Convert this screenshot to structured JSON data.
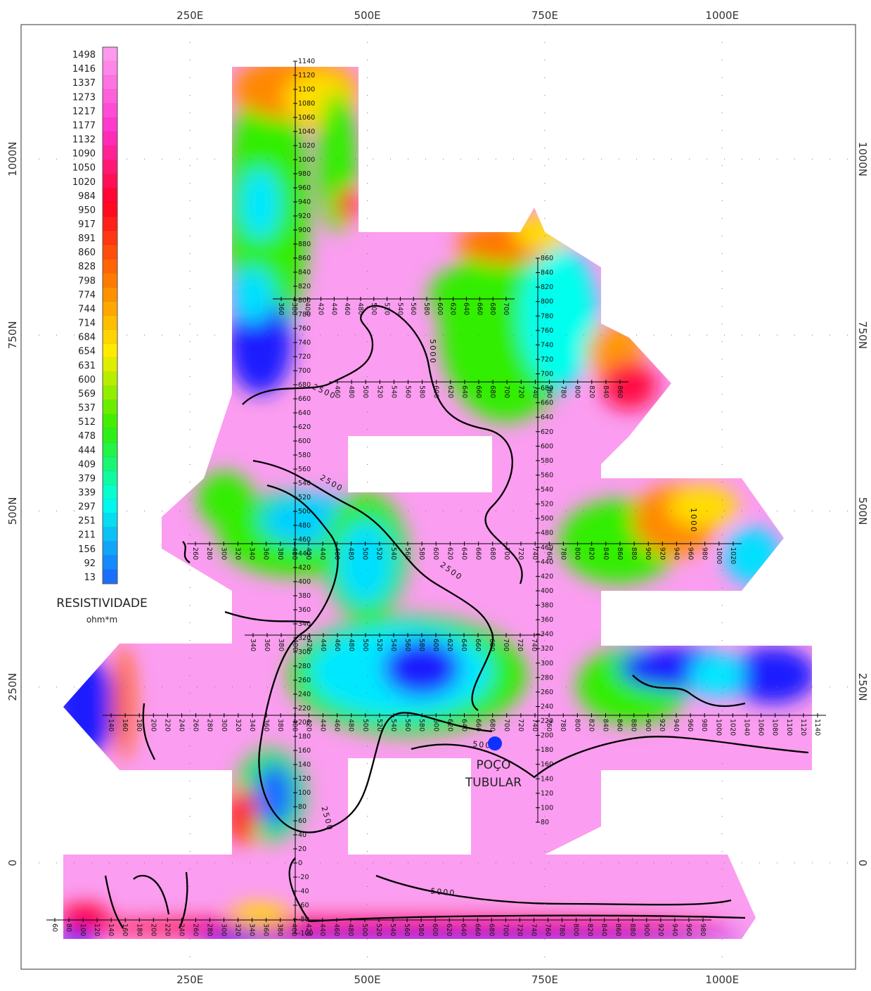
{
  "map": {
    "xlim": [
      12,
      1188
    ],
    "ylim": [
      -151,
      1191
    ],
    "xticks": [
      {
        "value": 250,
        "label": "250E"
      },
      {
        "value": 500,
        "label": "500E"
      },
      {
        "value": 750,
        "label": "750E"
      },
      {
        "value": 1000,
        "label": "1000E"
      }
    ],
    "yticks": [
      {
        "value": 1000,
        "label": "1000N"
      },
      {
        "value": 750,
        "label": "750N"
      },
      {
        "value": 500,
        "label": "500N"
      },
      {
        "value": 250,
        "label": "250N"
      },
      0
    ],
    "grid": true,
    "colorbar": {
      "title": "RESISTIVIDADE",
      "unit": "ohm*m",
      "labels": [
        1498,
        1416,
        1337,
        1273,
        1217,
        1177,
        1132,
        1090,
        1050,
        1020,
        984,
        950,
        917,
        891,
        860,
        828,
        798,
        774,
        744,
        714,
        684,
        654,
        631,
        600,
        569,
        537,
        512,
        478,
        444,
        409,
        379,
        339,
        297,
        251,
        211,
        156,
        92,
        13
      ],
      "colors": [
        "#ff99ee",
        "#ff33cc",
        "#ff0022",
        "#ff7700",
        "#ffee00",
        "#33ee00",
        "#00ffee",
        "#1a6fff"
      ]
    },
    "annotations": {
      "well": [
        "POÇO",
        "TUBULAR"
      ],
      "contours": [
        "2500",
        "2500",
        "2500",
        "2500",
        "5000",
        "5000",
        "5000",
        "1000"
      ]
    },
    "survey_lines": [
      {
        "labels": [
          1140,
          1120,
          1100,
          1080,
          1060,
          1040,
          1020,
          1000,
          980,
          960,
          940,
          920,
          900,
          880,
          860,
          840,
          820,
          800,
          780,
          760,
          740,
          720,
          700,
          680,
          660,
          640,
          620,
          600,
          580,
          560,
          540,
          520,
          500,
          480,
          460,
          440,
          420,
          400,
          380,
          360,
          340,
          320,
          300,
          280,
          260,
          240,
          220,
          200,
          180,
          160,
          140,
          120,
          100,
          80,
          60,
          40,
          20,
          0,
          -20,
          -40,
          -60,
          -80,
          -100
        ]
      },
      {
        "labels": [
          860,
          840,
          820,
          800,
          780,
          760,
          740,
          720,
          700,
          680,
          660,
          640,
          620,
          600,
          580,
          560,
          540,
          520,
          500,
          480,
          460,
          440,
          420,
          400,
          380,
          360,
          340,
          320,
          300,
          280,
          260,
          240,
          220,
          200,
          180,
          160,
          140,
          120,
          100,
          80
        ]
      },
      {
        "labels": [
          360,
          380,
          400,
          420,
          440,
          460,
          480,
          500,
          520,
          540,
          560,
          580,
          600,
          620,
          640,
          660,
          680,
          700
        ]
      },
      {
        "labels": [
          460,
          480,
          500,
          520,
          540,
          560,
          580,
          600,
          620,
          640,
          660,
          680,
          700,
          720,
          740,
          760,
          780,
          800,
          820,
          840,
          860
        ]
      },
      {
        "labels": [
          260,
          280,
          300,
          320,
          340,
          360,
          380,
          400,
          420,
          440,
          460,
          480,
          500,
          520,
          540,
          560,
          580,
          600,
          620,
          640,
          660,
          680,
          700,
          720,
          740,
          760,
          780,
          800,
          820,
          840,
          860,
          880,
          900,
          920,
          940,
          960,
          980,
          1000,
          1020
        ]
      },
      {
        "labels": [
          340,
          360,
          380,
          400,
          420,
          440,
          460,
          480,
          500,
          520,
          540,
          560,
          580,
          600,
          620,
          640,
          660,
          680,
          700,
          720,
          740
        ]
      },
      {
        "labels": [
          140,
          160,
          180,
          200,
          220,
          240,
          260,
          280,
          300,
          320,
          340,
          360,
          380,
          400,
          420,
          440,
          460,
          480,
          500,
          520,
          540,
          560,
          580,
          600,
          620,
          640,
          660,
          680,
          700,
          720,
          740,
          760,
          780,
          800,
          820,
          840,
          860,
          880,
          900,
          920,
          940,
          960,
          980,
          1000,
          1020,
          1040,
          1060,
          1080,
          1100,
          1120,
          1140
        ]
      },
      {
        "labels": [
          60,
          80,
          100,
          120,
          140,
          160,
          180,
          200,
          220,
          240,
          260,
          280,
          300,
          320,
          340,
          360,
          380,
          400,
          420,
          440,
          460,
          480,
          500,
          520,
          540,
          560,
          580,
          600,
          620,
          640,
          660,
          680,
          700,
          720,
          740,
          760,
          780,
          800,
          820,
          840,
          860,
          880,
          900,
          920,
          940,
          960,
          980
        ]
      }
    ]
  }
}
